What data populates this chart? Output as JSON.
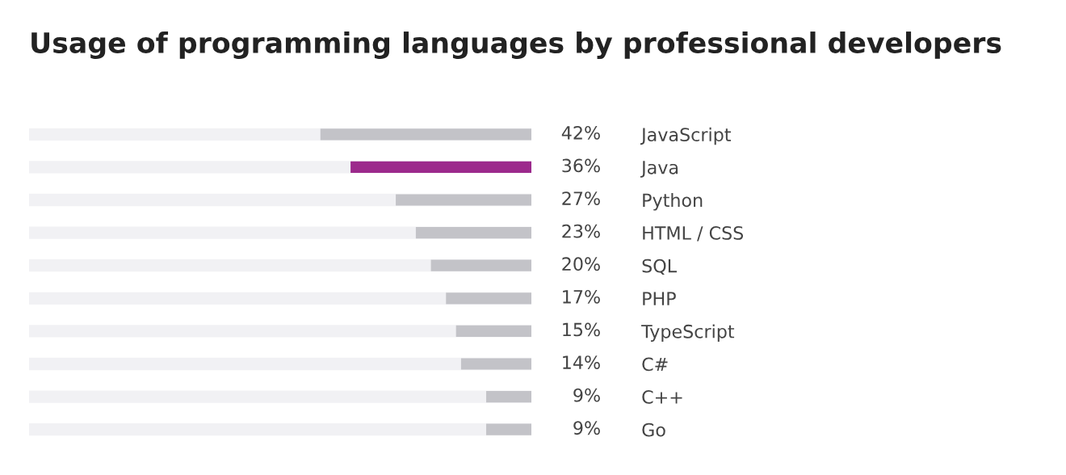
{
  "chart_data": {
    "type": "bar",
    "orientation": "horizontal",
    "title": "Usage of programming languages by professional developers",
    "categories": [
      "JavaScript",
      "Java",
      "Python",
      "HTML / CSS",
      "SQL",
      "PHP",
      "TypeScript",
      "C#",
      "C++",
      "Go"
    ],
    "values": [
      42,
      36,
      27,
      23,
      20,
      17,
      15,
      14,
      9,
      9
    ],
    "colors": [
      "#c3c3c8",
      "#9c2a8c",
      "#c3c3c8",
      "#c3c3c8",
      "#c3c3c8",
      "#c3c3c8",
      "#c3c3c8",
      "#c3c3c8",
      "#c3c3c8",
      "#c3c3c8"
    ],
    "value_labels": [
      "42%",
      "36%",
      "27%",
      "23%",
      "20%",
      "17%",
      "15%",
      "14%",
      "9%",
      "9%"
    ],
    "xlim": [
      100,
      0
    ],
    "tick_labels": "y",
    "grid": "y",
    "legend": false
  }
}
